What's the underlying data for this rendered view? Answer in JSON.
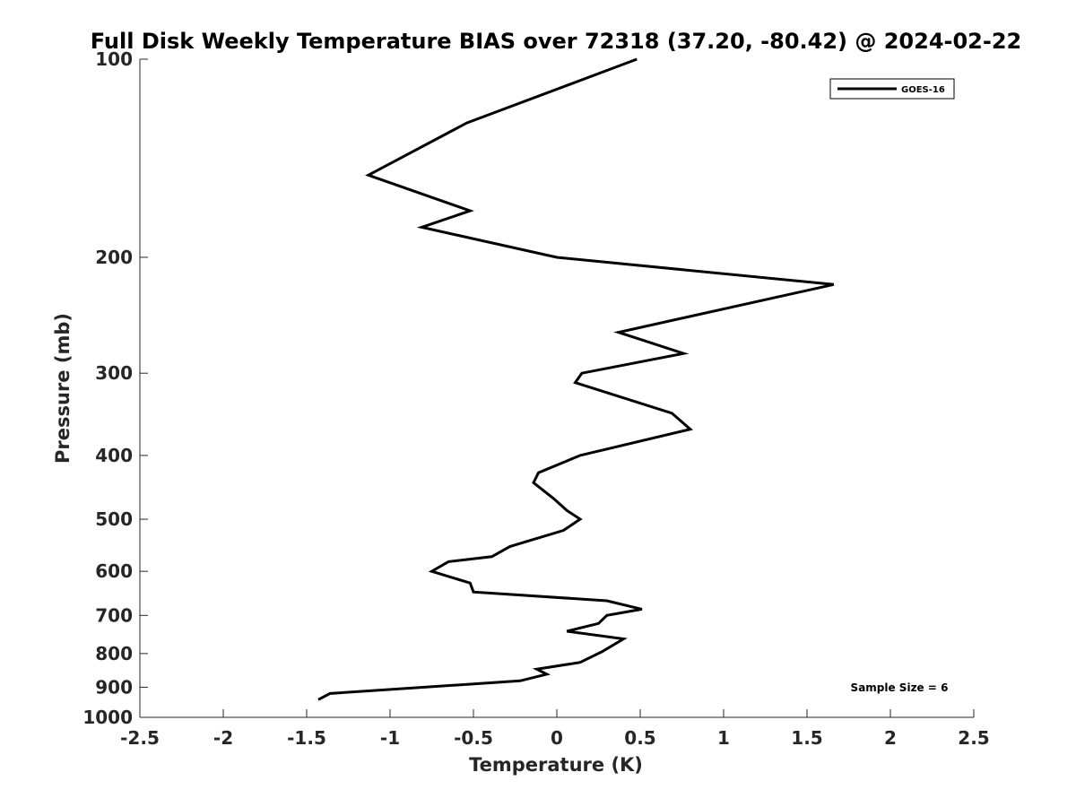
{
  "chart_data": {
    "type": "line",
    "title": "Full Disk Weekly Temperature BIAS over 72318 (37.20, -80.42) @ 2024-02-22",
    "xlabel": "Temperature (K)",
    "ylabel": "Pressure (mb)",
    "xlim": [
      -2.5,
      2.5
    ],
    "ylim": [
      100,
      1000
    ],
    "y_scale": "log",
    "y_reversed": true,
    "x_ticks": [
      "-2.5",
      "-2",
      "-1.5",
      "-1",
      "-0.5",
      "0",
      "0.5",
      "1",
      "1.5",
      "2",
      "2.5"
    ],
    "y_ticks": [
      "100",
      "200",
      "300",
      "400",
      "500",
      "600",
      "700",
      "800",
      "900",
      "1000"
    ],
    "grid": false,
    "legend": {
      "position": "top-right",
      "entries": [
        "GOES-16"
      ]
    },
    "annotation": "Sample Size = 6",
    "series": [
      {
        "name": "GOES-16",
        "color": "#000000",
        "points": [
          {
            "x": 0.48,
            "y": 100
          },
          {
            "x": -0.54,
            "y": 125
          },
          {
            "x": -1.13,
            "y": 150
          },
          {
            "x": -0.52,
            "y": 170
          },
          {
            "x": -0.81,
            "y": 180
          },
          {
            "x": 0.0,
            "y": 200
          },
          {
            "x": 1.66,
            "y": 220
          },
          {
            "x": 0.37,
            "y": 260
          },
          {
            "x": 0.76,
            "y": 280
          },
          {
            "x": 0.15,
            "y": 300
          },
          {
            "x": 0.11,
            "y": 310
          },
          {
            "x": 0.69,
            "y": 345
          },
          {
            "x": 0.8,
            "y": 365
          },
          {
            "x": 0.14,
            "y": 400
          },
          {
            "x": -0.11,
            "y": 425
          },
          {
            "x": -0.14,
            "y": 440
          },
          {
            "x": -0.02,
            "y": 465
          },
          {
            "x": 0.06,
            "y": 485
          },
          {
            "x": 0.14,
            "y": 500
          },
          {
            "x": 0.04,
            "y": 520
          },
          {
            "x": -0.28,
            "y": 550
          },
          {
            "x": -0.39,
            "y": 570
          },
          {
            "x": -0.65,
            "y": 580
          },
          {
            "x": -0.75,
            "y": 600
          },
          {
            "x": -0.52,
            "y": 625
          },
          {
            "x": -0.5,
            "y": 645
          },
          {
            "x": 0.3,
            "y": 665
          },
          {
            "x": 0.51,
            "y": 685
          },
          {
            "x": 0.3,
            "y": 700
          },
          {
            "x": 0.25,
            "y": 720
          },
          {
            "x": 0.06,
            "y": 740
          },
          {
            "x": 0.4,
            "y": 760
          },
          {
            "x": 0.27,
            "y": 795
          },
          {
            "x": 0.14,
            "y": 825
          },
          {
            "x": -0.12,
            "y": 845
          },
          {
            "x": -0.06,
            "y": 860
          },
          {
            "x": -0.22,
            "y": 880
          },
          {
            "x": -1.36,
            "y": 920
          },
          {
            "x": -1.43,
            "y": 940
          }
        ]
      }
    ]
  }
}
